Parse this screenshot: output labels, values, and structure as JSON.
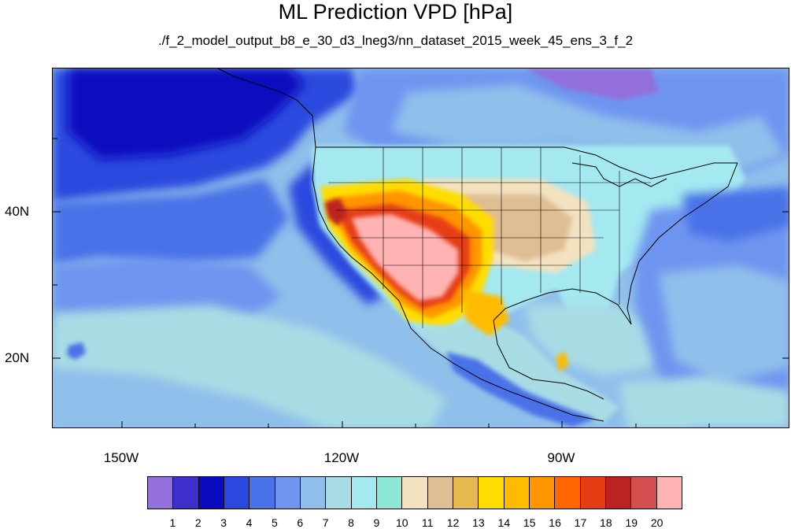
{
  "title": "ML Prediction VPD [hPa]",
  "subtitle": "./f_2_model_output_b8_e_30_d3_lneg3/nn_dataset_2015_week_45_ens_3_f_2",
  "map": {
    "projection": "cylindrical equidistant",
    "lon_range": [
      -160,
      -59
    ],
    "lat_range": [
      11,
      60
    ],
    "lat_labels": [
      "40N",
      "20N"
    ],
    "lon_labels": [
      "150W",
      "120W",
      "90W"
    ],
    "field": "VPD",
    "units": "hPa"
  },
  "colorbar": {
    "labels": [
      "1",
      "2",
      "3",
      "4",
      "5",
      "6",
      "7",
      "8",
      "9",
      "10",
      "11",
      "12",
      "13",
      "14",
      "15",
      "16",
      "17",
      "18",
      "19",
      "20"
    ],
    "colors": [
      "#9370DB",
      "#3E2ECC",
      "#0A0ABF",
      "#2A48DE",
      "#4A72E8",
      "#6E95F0",
      "#8FBFEB",
      "#A8DCE4",
      "#A4E8F0",
      "#8EE8D8",
      "#F2E2C0",
      "#DFBE94",
      "#E8B850",
      "#FFDD00",
      "#FFBB00",
      "#FF9500",
      "#FF6600",
      "#E63C14",
      "#BB2222",
      "#D45050",
      "#FFB3B3"
    ]
  }
}
